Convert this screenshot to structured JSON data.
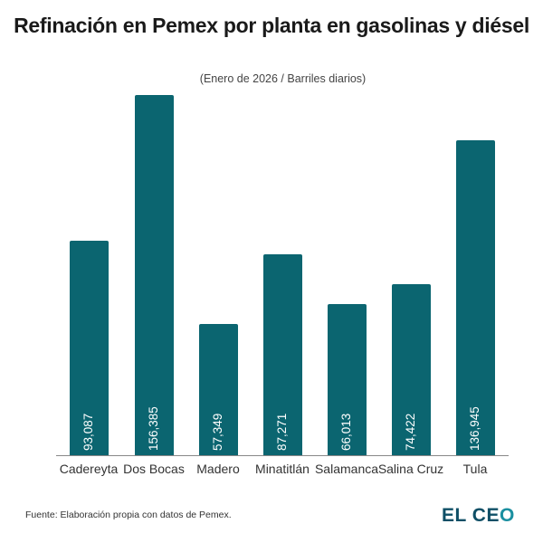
{
  "header": {
    "title": "Refinación en Pemex por planta en gasolinas y diésel",
    "subtitle": "(Enero de 2026 / Barriles diarios)"
  },
  "footer": {
    "source": "Fuente: Elaboración propia con datos de Pemex.",
    "logo_main": "EL CE",
    "logo_o": "O"
  },
  "colors": {
    "bar": "#0b6570",
    "logo": "#0f4f66",
    "logo_accent": "#1a8fa0"
  },
  "chart_data": {
    "type": "bar",
    "title": "Refinación en Pemex por planta en gasolinas y diésel",
    "subtitle": "(Enero de 2026 / Barriles diarios)",
    "xlabel": "",
    "ylabel": "Barriles diarios",
    "grid": false,
    "legend": null,
    "categories": [
      "Cadereyta",
      "Dos Bocas",
      "Madero",
      "Minatitlán",
      "Salamanca",
      "Salina Cruz",
      "Tula"
    ],
    "values": [
      93087,
      156385,
      57349,
      87271,
      66013,
      74422,
      136945
    ],
    "value_labels": [
      "93,087",
      "156,385",
      "57,349",
      "87,271",
      "66,013",
      "74,422",
      "136,945"
    ],
    "ylim": [
      0,
      160000
    ]
  }
}
